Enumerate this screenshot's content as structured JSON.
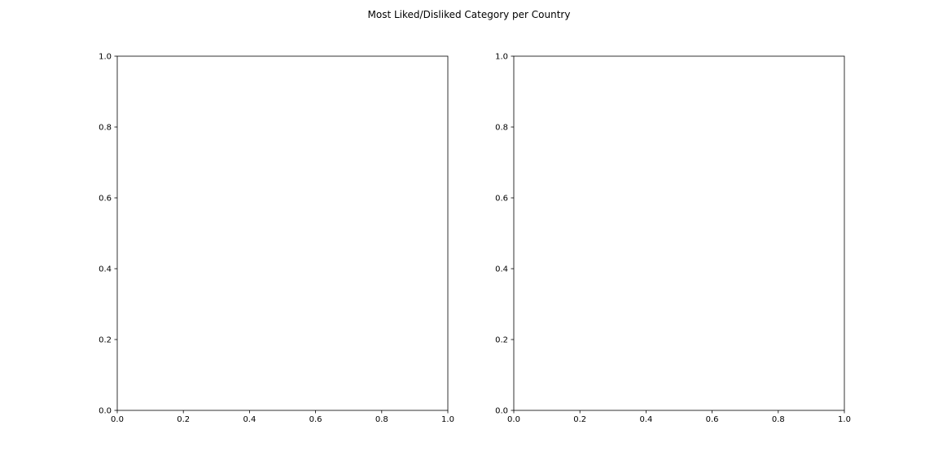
{
  "figure": {
    "title": "Most Liked/Disliked Category per Country"
  },
  "chart_data": [
    {
      "type": "scatter",
      "title": "",
      "xlabel": "",
      "ylabel": "",
      "xlim": [
        0.0,
        1.0
      ],
      "ylim": [
        0.0,
        1.0
      ],
      "xticks": [
        "0.0",
        "0.2",
        "0.4",
        "0.6",
        "0.8",
        "1.0"
      ],
      "yticks": [
        "0.0",
        "0.2",
        "0.4",
        "0.6",
        "0.8",
        "1.0"
      ],
      "grid": false,
      "series": []
    },
    {
      "type": "scatter",
      "title": "",
      "xlabel": "",
      "ylabel": "",
      "xlim": [
        0.0,
        1.0
      ],
      "ylim": [
        0.0,
        1.0
      ],
      "xticks": [
        "0.0",
        "0.2",
        "0.4",
        "0.6",
        "0.8",
        "1.0"
      ],
      "yticks": [
        "0.0",
        "0.2",
        "0.4",
        "0.6",
        "0.8",
        "1.0"
      ],
      "grid": false,
      "series": []
    }
  ]
}
